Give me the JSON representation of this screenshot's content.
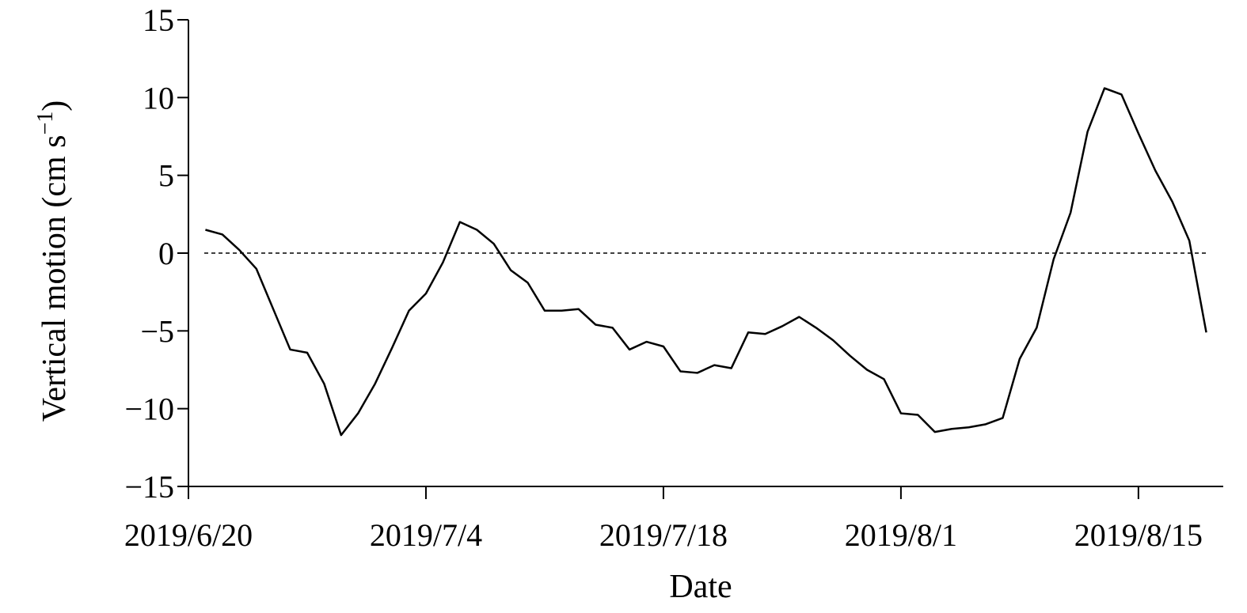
{
  "chart_data": {
    "type": "line",
    "xlabel": "Date",
    "ylabel_parts": [
      "Vertical motion (cm s",
      "−1",
      ")"
    ],
    "x": [
      "2019/6/21",
      "2019/6/22",
      "2019/6/23",
      "2019/6/24",
      "2019/6/25",
      "2019/6/26",
      "2019/6/27",
      "2019/6/28",
      "2019/6/29",
      "2019/6/30",
      "2019/7/1",
      "2019/7/2",
      "2019/7/3",
      "2019/7/4",
      "2019/7/5",
      "2019/7/6",
      "2019/7/7",
      "2019/7/8",
      "2019/7/9",
      "2019/7/10",
      "2019/7/11",
      "2019/7/12",
      "2019/7/13",
      "2019/7/14",
      "2019/7/15",
      "2019/7/16",
      "2019/7/17",
      "2019/7/18",
      "2019/7/19",
      "2019/7/20",
      "2019/7/21",
      "2019/7/22",
      "2019/7/23",
      "2019/7/24",
      "2019/7/25",
      "2019/7/26",
      "2019/7/27",
      "2019/7/28",
      "2019/7/29",
      "2019/7/30",
      "2019/7/31",
      "2019/8/1",
      "2019/8/2",
      "2019/8/3",
      "2019/8/4",
      "2019/8/5",
      "2019/8/6",
      "2019/8/7",
      "2019/8/8",
      "2019/8/9",
      "2019/8/10",
      "2019/8/11",
      "2019/8/12",
      "2019/8/13",
      "2019/8/14",
      "2019/8/15",
      "2019/8/16",
      "2019/8/17",
      "2019/8/18",
      "2019/8/19"
    ],
    "series": [
      {
        "name": "Vertical motion",
        "color": "#000000",
        "values": [
          1.5,
          1.2,
          0.2,
          -1.0,
          -3.6,
          -6.2,
          -6.4,
          -8.4,
          -11.7,
          -10.3,
          -8.4,
          -6.1,
          -3.7,
          -2.6,
          -0.6,
          2.0,
          1.5,
          0.6,
          -1.1,
          -1.9,
          -3.7,
          -3.7,
          -3.6,
          -4.6,
          -4.8,
          -6.2,
          -5.7,
          -6.0,
          -7.6,
          -7.7,
          -7.2,
          -7.4,
          -5.1,
          -5.2,
          -4.7,
          -4.1,
          -4.8,
          -5.6,
          -6.6,
          -7.5,
          -8.1,
          -10.3,
          -10.4,
          -11.5,
          -11.3,
          -11.2,
          -11.0,
          -10.6,
          -6.8,
          -4.8,
          -0.4,
          2.6,
          7.8,
          10.6,
          10.2,
          7.7,
          5.3,
          3.3,
          0.8,
          -5.1
        ]
      }
    ],
    "xlim": [
      "2019/6/20",
      "2019/8/20"
    ],
    "xticks": [
      "2019/6/20",
      "2019/7/4",
      "2019/7/18",
      "2019/8/1",
      "2019/8/15"
    ],
    "ylim": [
      -15,
      15
    ],
    "yticks": [
      {
        "value": -15,
        "label": "−15"
      },
      {
        "value": -10,
        "label": "−10"
      },
      {
        "value": -5,
        "label": "−5"
      },
      0,
      5,
      10,
      15
    ],
    "reference_line": 0
  }
}
